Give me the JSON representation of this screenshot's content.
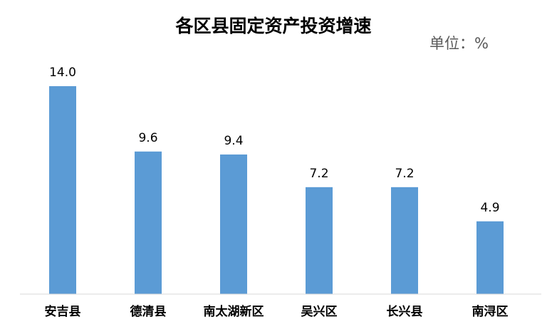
{
  "chart_data": {
    "type": "bar",
    "title": "各区县固定资产投资增速",
    "unit_label": "单位：%",
    "categories": [
      "安吉县",
      "德清县",
      "南太湖新区",
      "吴兴区",
      "长兴县",
      "南浔区"
    ],
    "values": [
      14.0,
      9.6,
      9.4,
      7.2,
      7.2,
      4.9
    ],
    "value_labels": [
      "14.0",
      "9.6",
      "9.4",
      "7.2",
      "7.2",
      "4.9"
    ],
    "ylim": [
      0,
      14.0
    ],
    "grid": false,
    "legend": "none",
    "bar_color": "#5b9bd5"
  }
}
